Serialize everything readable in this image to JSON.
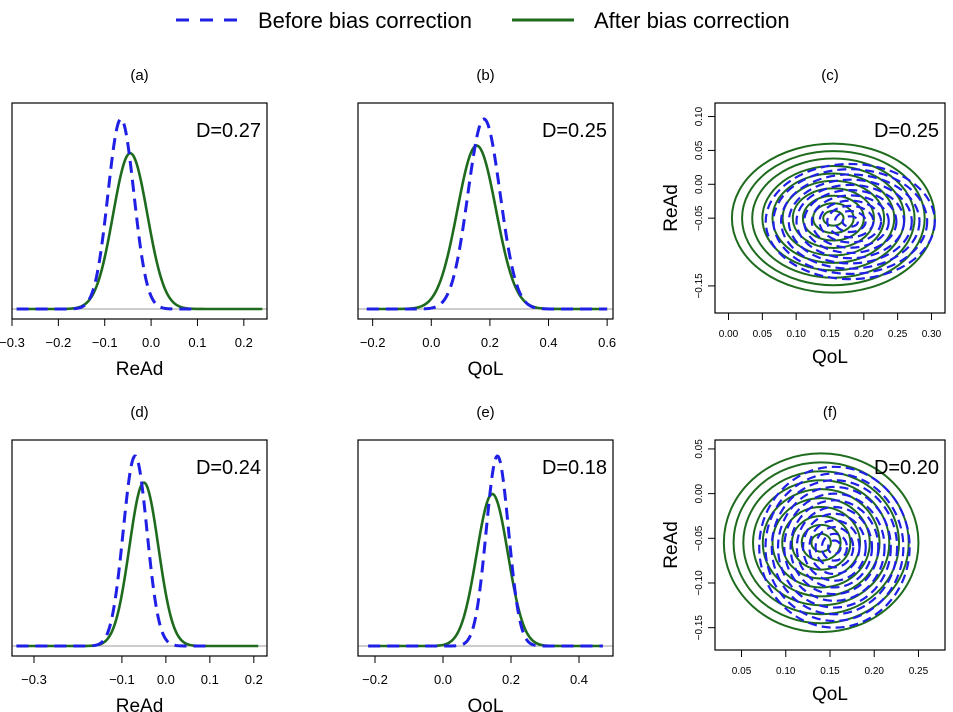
{
  "legend": {
    "before_label": "Before bias correction",
    "after_label": "After bias correction"
  },
  "colors": {
    "before": "#1f1fe6",
    "after": "#1e6b1e",
    "baseline": "#9a9a9a"
  },
  "chart_data": [
    {
      "id": "a",
      "type": "line",
      "panel_label": "(a)",
      "annotation": "D=0.27",
      "xlabel": "ReAd",
      "xlim": [
        -0.3,
        0.25
      ],
      "xticks": [
        -0.3,
        -0.2,
        -0.1,
        0.0,
        0.1,
        0.2
      ],
      "xtick_labels": [
        "−0.3",
        "−0.2",
        "−0.1",
        "0.0",
        "0.1",
        "0.2"
      ],
      "series": [
        {
          "name": "Before bias correction",
          "mean": -0.065,
          "sd": 0.028,
          "peak_rel": 1.0,
          "x_range": [
            -0.29,
            0.1
          ]
        },
        {
          "name": "After bias correction",
          "mean": -0.045,
          "sd": 0.037,
          "peak_rel": 0.82,
          "x_range": [
            -0.29,
            0.24
          ]
        }
      ]
    },
    {
      "id": "b",
      "type": "line",
      "panel_label": "(b)",
      "annotation": "D=0.25",
      "xlabel": "QoL",
      "xlim": [
        -0.25,
        0.62
      ],
      "xticks": [
        -0.2,
        0.0,
        0.2,
        0.4,
        0.6
      ],
      "xtick_labels": [
        "−0.2",
        "0.0",
        "0.2",
        "0.4",
        "0.6"
      ],
      "series": [
        {
          "name": "Before bias correction",
          "mean": 0.18,
          "sd": 0.055,
          "peak_rel": 1.0,
          "x_range": [
            -0.22,
            0.6
          ]
        },
        {
          "name": "After bias correction",
          "mean": 0.155,
          "sd": 0.066,
          "peak_rel": 0.86,
          "x_range": [
            -0.22,
            0.6
          ]
        }
      ]
    },
    {
      "id": "c",
      "type": "contour",
      "panel_label": "(c)",
      "annotation": "D=0.25",
      "xlabel": "QoL",
      "ylabel": "ReAd",
      "xlim": [
        -0.02,
        0.32
      ],
      "ylim": [
        -0.19,
        0.12
      ],
      "xticks": [
        0.0,
        0.05,
        0.1,
        0.15,
        0.2,
        0.25,
        0.3
      ],
      "xtick_labels": [
        "0.00",
        "0.05",
        "0.10",
        "0.15",
        "0.20",
        "0.25",
        "0.30"
      ],
      "yticks": [
        -0.15,
        -0.05,
        0.0,
        0.05,
        0.1
      ],
      "ytick_labels": [
        "−0.15",
        "−0.05",
        "0.00",
        "0.05",
        "0.10"
      ],
      "series": [
        {
          "name": "Before bias correction",
          "center": [
            0.18,
            -0.055
          ],
          "outer_radii": [
            0.125,
            0.085
          ],
          "levels": 11
        },
        {
          "name": "After bias correction",
          "center": [
            0.155,
            -0.05
          ],
          "outer_radii": [
            0.15,
            0.11
          ],
          "levels": 10
        }
      ]
    },
    {
      "id": "d",
      "type": "line",
      "panel_label": "(d)",
      "annotation": "D=0.24",
      "xlabel": "ReAd",
      "xlim": [
        -0.35,
        0.23
      ],
      "xticks": [
        -0.3,
        -0.1,
        0.0,
        0.1,
        0.2
      ],
      "xtick_labels": [
        "−0.3",
        "−0.1",
        "0.0",
        "0.1",
        "0.2"
      ],
      "series": [
        {
          "name": "Before bias correction",
          "mean": -0.07,
          "sd": 0.027,
          "peak_rel": 1.0,
          "x_range": [
            -0.34,
            0.1
          ]
        },
        {
          "name": "After bias correction",
          "mean": -0.05,
          "sd": 0.033,
          "peak_rel": 0.86,
          "x_range": [
            -0.34,
            0.21
          ]
        }
      ]
    },
    {
      "id": "e",
      "type": "line",
      "panel_label": "(e)",
      "annotation": "D=0.18",
      "xlabel": "QoL",
      "xlim": [
        -0.25,
        0.5
      ],
      "xticks": [
        -0.2,
        0.0,
        0.2,
        0.4
      ],
      "xtick_labels": [
        "−0.2",
        "0.0",
        "0.2",
        "0.4"
      ],
      "series": [
        {
          "name": "Before bias correction",
          "mean": 0.16,
          "sd": 0.033,
          "peak_rel": 1.0,
          "x_range": [
            -0.22,
            0.47
          ]
        },
        {
          "name": "After bias correction",
          "mean": 0.145,
          "sd": 0.046,
          "peak_rel": 0.8,
          "x_range": [
            -0.22,
            0.47
          ]
        }
      ]
    },
    {
      "id": "f",
      "type": "contour",
      "panel_label": "(f)",
      "annotation": "D=0.20",
      "xlabel": "QoL",
      "ylabel": "ReAd",
      "xlim": [
        0.02,
        0.28
      ],
      "ylim": [
        -0.175,
        0.06
      ],
      "xticks": [
        0.05,
        0.1,
        0.15,
        0.2,
        0.25
      ],
      "xtick_labels": [
        "0.05",
        "0.10",
        "0.15",
        "0.20",
        "0.25"
      ],
      "yticks": [
        -0.15,
        -0.1,
        -0.05,
        0.0,
        0.05
      ],
      "ytick_labels": [
        "−0.15",
        "−0.10",
        "−0.05",
        "0.00",
        "0.05"
      ],
      "series": [
        {
          "name": "Before bias correction",
          "center": [
            0.155,
            -0.06
          ],
          "outer_radii": [
            0.085,
            0.09
          ],
          "levels": 12
        },
        {
          "name": "After bias correction",
          "center": [
            0.14,
            -0.055
          ],
          "outer_radii": [
            0.11,
            0.1
          ],
          "levels": 10
        }
      ]
    }
  ]
}
